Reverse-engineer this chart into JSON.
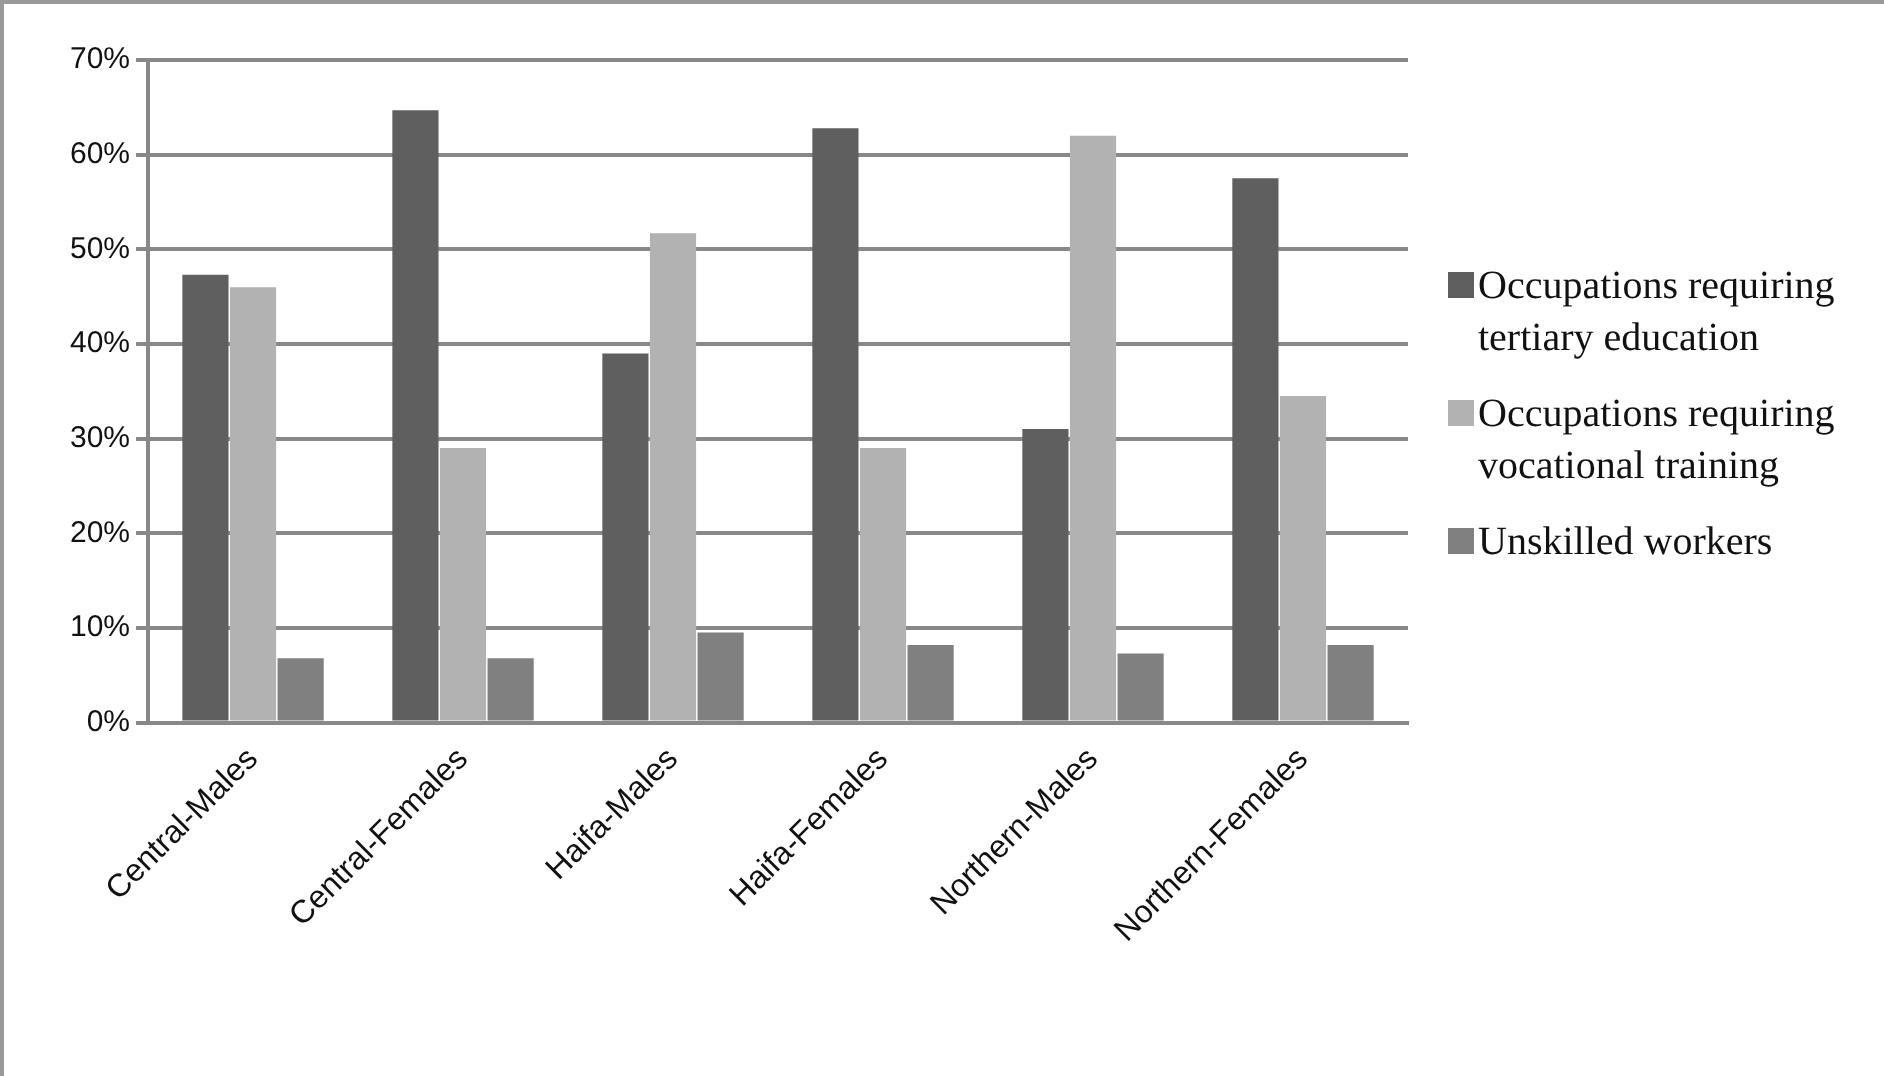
{
  "chart_data": {
    "type": "bar",
    "categories": [
      "Central-Males",
      "Central-Females",
      "Haifa-Males",
      "Haifa-Females",
      "Northern-Males",
      "Northern-Females"
    ],
    "series": [
      {
        "name": "Occupations requiring tertiary education",
        "color": "#5f5f5f",
        "values": [
          47.3,
          64.7,
          39,
          62.8,
          31,
          57.5
        ]
      },
      {
        "name": "Occupations requiring vocational training",
        "color": "#b2b2b2",
        "values": [
          46,
          29,
          51.7,
          29,
          62,
          34.5
        ]
      },
      {
        "name": "Unskilled workers",
        "color": "#808080",
        "values": [
          6.8,
          6.8,
          9.5,
          8.2,
          7.3,
          8.2
        ]
      }
    ],
    "ylim": [
      0,
      70
    ],
    "yticks": [
      {
        "value": 0,
        "label": "0%"
      },
      {
        "value": 10,
        "label": "10%"
      },
      {
        "value": 20,
        "label": "20%"
      },
      {
        "value": 30,
        "label": "30%"
      },
      {
        "value": 40,
        "label": "40%"
      },
      {
        "value": 50,
        "label": "50%"
      },
      {
        "value": 60,
        "label": "60%"
      },
      {
        "value": 70,
        "label": "70%"
      }
    ],
    "grid": "y",
    "legend": "right"
  }
}
